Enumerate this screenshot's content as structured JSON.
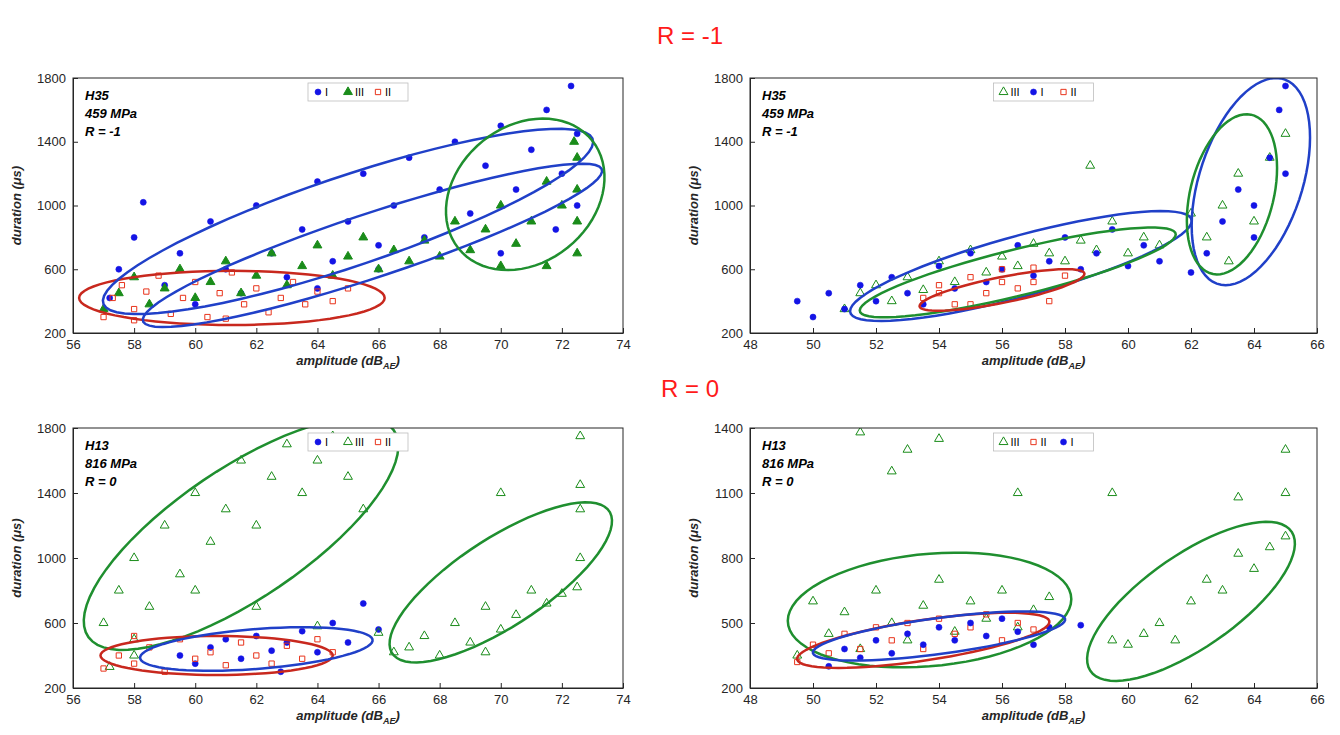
{
  "row_titles": [
    "R = -1",
    "R = 0"
  ],
  "chart_data": [
    {
      "type": "scatter",
      "annotation": [
        "H35",
        "459 MPa",
        "R = -1"
      ],
      "xlabel": [
        "amplitude (dB",
        "AE",
        ")"
      ],
      "ylabel": "duration (μs)",
      "xlim": [
        56,
        74
      ],
      "xticks": [
        56,
        58,
        60,
        62,
        64,
        66,
        68,
        70,
        72,
        74
      ],
      "ylim": [
        200,
        1800
      ],
      "yticks": [
        200,
        600,
        1000,
        1400,
        1800
      ],
      "series": [
        {
          "name": "I",
          "color": "#1414e6",
          "marker": "circle",
          "x": [
            57.2,
            57.5,
            58,
            58.3,
            59,
            59.5,
            60,
            60.5,
            61,
            61.5,
            62,
            62.5,
            63,
            63.5,
            64,
            64.5,
            65,
            65.5,
            66,
            66.5,
            67,
            67.5,
            68,
            68.5,
            69,
            69.5,
            70,
            70.5,
            71,
            71.5,
            72,
            72.3,
            72.5,
            72.5,
            71.8,
            70,
            66,
            64
          ],
          "values": [
            420,
            600,
            800,
            1020,
            500,
            700,
            380,
            900,
            600,
            450,
            1000,
            700,
            550,
            850,
            1150,
            650,
            900,
            1200,
            750,
            1000,
            1300,
            800,
            1100,
            1400,
            950,
            1250,
            1500,
            1100,
            1350,
            1600,
            1200,
            1750,
            1450,
            1000,
            850,
            700,
            600,
            480
          ]
        },
        {
          "name": "III",
          "color": "#1a8c1a",
          "marker": "triangle",
          "x": [
            57,
            57.5,
            58,
            58.5,
            59,
            59.5,
            60,
            60.5,
            61,
            61.5,
            62,
            62.5,
            63,
            63.5,
            64,
            64.5,
            65,
            65.5,
            66,
            66.5,
            67,
            67.5,
            68,
            68.5,
            69,
            69.5,
            70,
            70.5,
            71,
            71.5,
            72,
            72.5,
            72.5,
            72.5,
            72.5,
            72.4,
            71.5,
            70
          ],
          "values": [
            350,
            450,
            550,
            380,
            480,
            600,
            420,
            520,
            650,
            450,
            560,
            700,
            500,
            620,
            750,
            560,
            680,
            800,
            600,
            720,
            650,
            780,
            680,
            900,
            720,
            850,
            1000,
            760,
            900,
            1150,
            1000,
            1300,
            1100,
            900,
            700,
            1400,
            620,
            620
          ]
        },
        {
          "name": "II",
          "color": "#e8341c",
          "marker": "open-square",
          "x": [
            57,
            57.3,
            57.6,
            58,
            58.4,
            58.8,
            59.2,
            59.6,
            60,
            60.4,
            60.8,
            61.2,
            61.6,
            62,
            62.4,
            62.8,
            63.2,
            63.6,
            64,
            64.5,
            65,
            58,
            61
          ],
          "values": [
            300,
            420,
            500,
            350,
            460,
            560,
            320,
            420,
            520,
            300,
            450,
            580,
            380,
            480,
            330,
            420,
            520,
            380,
            460,
            400,
            480,
            280,
            290
          ]
        }
      ],
      "ellipses": [
        {
          "color": "#c8281e",
          "center": [
            61.2,
            420
          ],
          "axis1": [
            5,
            0
          ],
          "axis2": [
            0,
            170
          ]
        },
        {
          "color": "#2040c8",
          "center": [
            65,
            900
          ],
          "axis1": [
            8,
            520
          ],
          "axis2": [
            -0.6,
            260
          ]
        },
        {
          "color": "#2040c8",
          "center": [
            65.8,
            750
          ],
          "axis1": [
            7.5,
            480
          ],
          "axis2": [
            -0.5,
            180
          ]
        },
        {
          "color": "#1f8f2f",
          "center": [
            70.8,
            1070
          ],
          "axis1": [
            1.2,
            460
          ],
          "axis2": [
            2.3,
            -120
          ]
        }
      ]
    },
    {
      "type": "scatter",
      "annotation": [
        "H35",
        "459 MPa",
        "R = -1"
      ],
      "xlabel": [
        "amplitude (dB",
        "AE",
        ")"
      ],
      "ylabel": "duration (μs)",
      "xlim": [
        48,
        66
      ],
      "xticks": [
        48,
        50,
        52,
        54,
        56,
        58,
        60,
        62,
        64,
        66
      ],
      "ylim": [
        200,
        1800
      ],
      "yticks": [
        200,
        600,
        1000,
        1400,
        1800
      ],
      "series": [
        {
          "name": "III",
          "color": "#1a8c1a",
          "marker": "open-triangle",
          "x": [
            51,
            51.5,
            52,
            52.5,
            53,
            53.5,
            54,
            54.5,
            55,
            55.5,
            56,
            56.5,
            57,
            57.5,
            58,
            58.5,
            59,
            59.5,
            60,
            60.5,
            61,
            58.8,
            62.5,
            63,
            63.5,
            64,
            64.5,
            65,
            62,
            63.2
          ],
          "values": [
            350,
            450,
            500,
            400,
            550,
            470,
            650,
            520,
            720,
            580,
            680,
            620,
            760,
            700,
            650,
            780,
            720,
            900,
            700,
            800,
            750,
            1250,
            800,
            1000,
            1200,
            900,
            1300,
            1450,
            950,
            650
          ]
        },
        {
          "name": "I",
          "color": "#1414e6",
          "marker": "circle",
          "x": [
            49.5,
            50,
            50.5,
            51,
            51.5,
            52,
            52.5,
            53,
            53.5,
            54,
            54.5,
            55,
            55.5,
            56,
            56.5,
            57,
            57.5,
            58,
            58.5,
            59,
            59.5,
            60,
            60.5,
            61,
            62,
            62.5,
            63,
            63.5,
            64,
            64.5,
            64.8,
            65,
            65,
            64
          ],
          "values": [
            400,
            300,
            450,
            350,
            500,
            400,
            550,
            450,
            380,
            620,
            480,
            700,
            520,
            600,
            750,
            560,
            650,
            800,
            600,
            700,
            850,
            620,
            750,
            650,
            580,
            700,
            900,
            1100,
            800,
            1300,
            1600,
            1750,
            1200,
            1000
          ]
        },
        {
          "name": "II",
          "color": "#e8341c",
          "marker": "open-square",
          "x": [
            53.5,
            54,
            54.5,
            55,
            55.5,
            56,
            56.5,
            57,
            57.5,
            55,
            56,
            57,
            58,
            54
          ],
          "values": [
            420,
            500,
            380,
            550,
            450,
            600,
            480,
            520,
            400,
            380,
            520,
            610,
            560,
            450
          ]
        }
      ],
      "ellipses": [
        {
          "color": "#2040c8",
          "center": [
            56.6,
            620
          ],
          "axis1": [
            5.4,
            300
          ],
          "axis2": [
            -0.5,
            170
          ]
        },
        {
          "color": "#1f8f2f",
          "center": [
            56.5,
            580
          ],
          "axis1": [
            5,
            250
          ],
          "axis2": [
            -0.4,
            130
          ]
        },
        {
          "color": "#c8281e",
          "center": [
            56,
            470
          ],
          "axis1": [
            2.6,
            110
          ],
          "axis2": [
            -0.3,
            70
          ]
        },
        {
          "color": "#2040c8",
          "center": [
            63.9,
            1150
          ],
          "axis1": [
            0.8,
            650
          ],
          "axis2": [
            1.7,
            0
          ]
        },
        {
          "color": "#1f8f2f",
          "center": [
            63.3,
            1070
          ],
          "axis1": [
            0.6,
            500
          ],
          "axis2": [
            1.3,
            -50
          ]
        }
      ]
    },
    {
      "type": "scatter",
      "annotation": [
        "H13",
        "816 MPa",
        "R = 0"
      ],
      "xlabel": [
        "amplitude (dB",
        "AE",
        ")"
      ],
      "ylabel": "duration (μs)",
      "xlim": [
        56,
        74
      ],
      "xticks": [
        56,
        58,
        60,
        62,
        64,
        66,
        68,
        70,
        72,
        74
      ],
      "ylim": [
        200,
        1800
      ],
      "yticks": [
        200,
        600,
        1000,
        1400,
        1800
      ],
      "series": [
        {
          "name": "I",
          "color": "#1414e6",
          "marker": "circle",
          "x": [
            59.5,
            60,
            60.5,
            61,
            61.5,
            62,
            62.5,
            63,
            63.5,
            64,
            64.5,
            65,
            65.5,
            66,
            62.8
          ],
          "values": [
            400,
            350,
            450,
            500,
            380,
            520,
            430,
            480,
            550,
            420,
            600,
            480,
            720,
            560,
            300
          ]
        },
        {
          "name": "III",
          "color": "#1a8c1a",
          "marker": "open-triangle",
          "x": [
            57,
            57.5,
            58,
            58.5,
            59,
            59.5,
            60,
            60.5,
            61,
            61.5,
            62,
            62.5,
            63,
            63.5,
            64,
            64.5,
            65,
            65.5,
            60,
            58,
            62,
            64,
            66,
            66.5,
            67,
            67.5,
            68,
            68.5,
            69,
            69.5,
            70,
            70.5,
            71,
            71.5,
            72,
            72.5,
            72.6,
            72.6,
            72.6,
            72.6,
            70,
            69.5,
            57.2,
            58
          ],
          "values": [
            600,
            800,
            1000,
            700,
            1200,
            900,
            1400,
            1100,
            1300,
            1600,
            1200,
            1500,
            1700,
            1400,
            1600,
            1750,
            1500,
            1300,
            800,
            500,
            700,
            580,
            540,
            420,
            450,
            520,
            400,
            600,
            480,
            700,
            560,
            650,
            800,
            720,
            780,
            820,
            1000,
            1300,
            1450,
            1750,
            1400,
            420,
            330,
            400
          ]
        },
        {
          "name": "II",
          "color": "#e8341c",
          "marker": "open-square",
          "x": [
            57,
            57.5,
            58,
            58.5,
            59,
            59.5,
            60,
            60.5,
            61,
            61.5,
            62,
            62.5,
            63,
            63.5,
            64,
            64.5,
            58
          ],
          "values": [
            320,
            400,
            350,
            450,
            300,
            500,
            380,
            420,
            340,
            480,
            400,
            350,
            460,
            380,
            500,
            420,
            520
          ]
        }
      ],
      "ellipses": [
        {
          "color": "#1f8f2f",
          "center": [
            61.5,
            1150
          ],
          "axis1": [
            4.5,
            700
          ],
          "axis2": [
            -2.5,
            150
          ]
        },
        {
          "color": "#c8281e",
          "center": [
            60.7,
            400
          ],
          "axis1": [
            3.8,
            0
          ],
          "axis2": [
            0,
            120
          ]
        },
        {
          "color": "#2040c8",
          "center": [
            62,
            440
          ],
          "axis1": [
            3.8,
            60
          ],
          "axis2": [
            -0.2,
            120
          ]
        },
        {
          "color": "#1f8f2f",
          "center": [
            70,
            850
          ],
          "axis1": [
            3.5,
            450
          ],
          "axis2": [
            -1,
            200
          ]
        }
      ]
    },
    {
      "type": "scatter",
      "annotation": [
        "H13",
        "816 MPa",
        "R = 0"
      ],
      "xlabel": [
        "amplitude (dB",
        "AE",
        ")"
      ],
      "ylabel": "duration (μs)",
      "xlim": [
        48,
        66
      ],
      "xticks": [
        48,
        50,
        52,
        54,
        56,
        58,
        60,
        62,
        64,
        66
      ],
      "ylim": [
        200,
        1400
      ],
      "yticks": [
        200,
        500,
        800,
        1100,
        1400
      ],
      "series": [
        {
          "name": "III",
          "color": "#1a8c1a",
          "marker": "open-triangle",
          "x": [
            49.5,
            50,
            50.5,
            51,
            51.5,
            52,
            52.5,
            53,
            53.5,
            54,
            54.5,
            55,
            55.5,
            56,
            56.5,
            57,
            57.5,
            51.5,
            52.5,
            53,
            54,
            56.5,
            59.5,
            60,
            60.5,
            61,
            61.5,
            62,
            62.5,
            63,
            63.5,
            64,
            64.5,
            65,
            65,
            65,
            63.5,
            59.5
          ],
          "values": [
            350,
            600,
            450,
            550,
            380,
            650,
            500,
            420,
            580,
            700,
            460,
            600,
            520,
            650,
            480,
            560,
            620,
            1380,
            1200,
            1300,
            1350,
            1100,
            420,
            400,
            450,
            500,
            420,
            600,
            700,
            650,
            820,
            750,
            850,
            1300,
            1100,
            900,
            1080,
            1100
          ]
        },
        {
          "name": "II",
          "color": "#e8341c",
          "marker": "open-square",
          "x": [
            49.5,
            50,
            50.5,
            51,
            51.5,
            52,
            52.5,
            53,
            53.5,
            54,
            54.5,
            55,
            55.5,
            56,
            56.5,
            57
          ],
          "values": [
            320,
            400,
            360,
            450,
            380,
            480,
            420,
            500,
            380,
            520,
            450,
            480,
            540,
            420,
            500,
            470
          ]
        },
        {
          "name": "I",
          "color": "#1414e6",
          "marker": "circle",
          "x": [
            50.5,
            51,
            51.5,
            52,
            52.5,
            53,
            53.5,
            54,
            54.5,
            55,
            55.5,
            56,
            56.5,
            57,
            57.5,
            58.5
          ],
          "values": [
            300,
            380,
            340,
            420,
            360,
            450,
            400,
            480,
            420,
            500,
            440,
            520,
            460,
            400,
            480,
            490
          ]
        }
      ],
      "ellipses": [
        {
          "color": "#1f8f2f",
          "center": [
            53.7,
            560
          ],
          "axis1": [
            4.5,
            50
          ],
          "axis2": [
            0,
            260
          ]
        },
        {
          "color": "#c8281e",
          "center": [
            53.5,
            420
          ],
          "axis1": [
            4,
            90
          ],
          "axis2": [
            -0.2,
            90
          ]
        },
        {
          "color": "#2040c8",
          "center": [
            54,
            440
          ],
          "axis1": [
            4,
            80
          ],
          "axis2": [
            -0.2,
            80
          ]
        },
        {
          "color": "#1f8f2f",
          "center": [
            62,
            600
          ],
          "axis1": [
            3.2,
            320
          ],
          "axis2": [
            -0.8,
            180
          ]
        }
      ]
    }
  ]
}
